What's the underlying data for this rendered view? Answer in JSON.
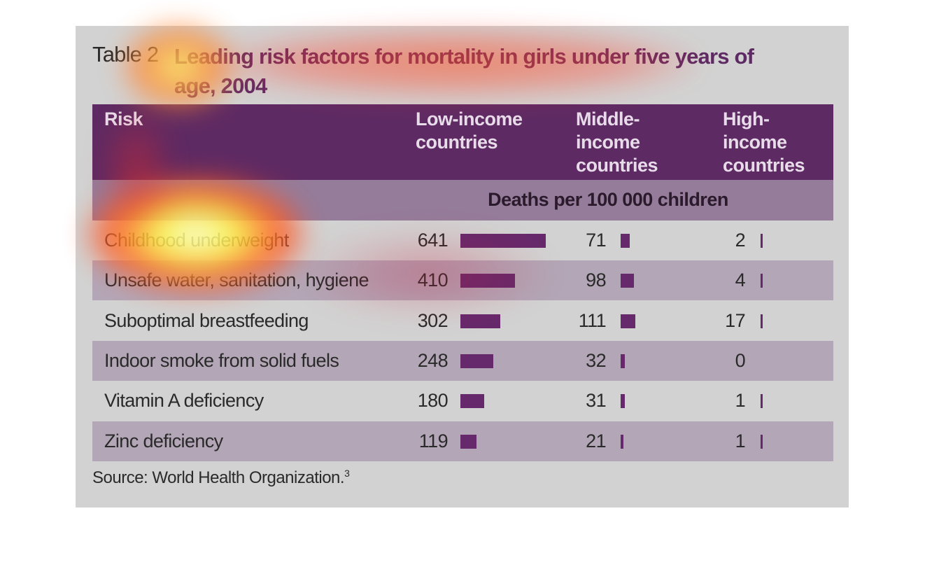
{
  "title": {
    "label": "Table 2",
    "text": "Leading risk factors for mortality in girls under five years of age, 2004"
  },
  "table": {
    "headers": [
      [
        "Risk"
      ],
      [
        "Low-income",
        "countries"
      ],
      [
        "Middle-",
        "income",
        "countries"
      ],
      [
        "High-",
        "income",
        "countries"
      ]
    ],
    "unit": "Deaths per 100 000 children",
    "rows": [
      [
        "Childhood underweight",
        641,
        71,
        2
      ],
      [
        "Unsafe water, sanitation, hygiene",
        410,
        98,
        4
      ],
      [
        "Suboptimal breastfeeding",
        302,
        111,
        17
      ],
      [
        "Indoor smoke from solid fuels",
        248,
        32,
        0
      ],
      [
        "Vitamin A deficiency",
        180,
        31,
        1
      ],
      [
        "Zinc deficiency",
        119,
        21,
        1
      ]
    ]
  },
  "source": {
    "text": "Source: World Health Organization.",
    "ref": "3"
  }
}
